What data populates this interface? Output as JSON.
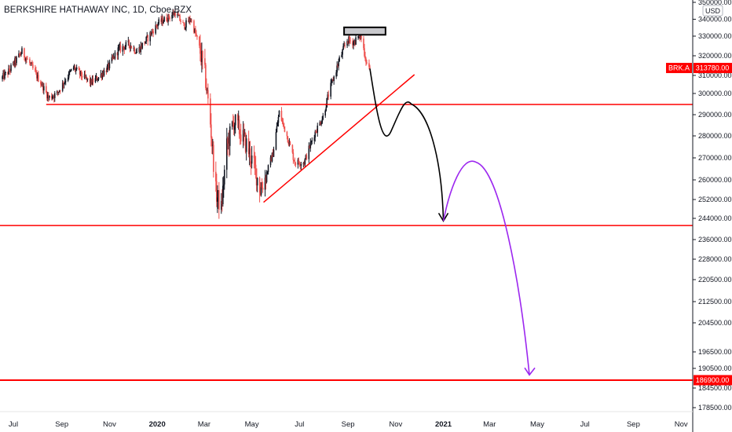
{
  "header": {
    "title": "BERKSHIRE HATHAWAY INC, 1D, Cboe BZX"
  },
  "price_axis": {
    "currency": "USD"
  },
  "colors": {
    "up": "#131722",
    "down": "#ef5350",
    "level": "#ff0000",
    "path_down": "#000000",
    "path_purple": "#9c27ef",
    "zone_fill": "#c8c8cc"
  },
  "labels": {
    "ticker": "BRK.A",
    "last_price": "313780.00",
    "target": "186900.00"
  },
  "chart_data": {
    "type": "candlestick",
    "title": "BERKSHIRE HATHAWAY INC, 1D, Cboe BZX",
    "ylim": [
      176000,
      351000
    ],
    "y_ticks": [
      "350000.00",
      "340000.00",
      "330000.00",
      "320000.00",
      "310000.00",
      "300000.00",
      "290000.00",
      "280000.00",
      "270000.00",
      "260000.00",
      "252000.00",
      "244000.00",
      "236000.00",
      "228000.00",
      "220500.00",
      "212500.00",
      "204500.00",
      "196500.00",
      "190500.00",
      "184500.00",
      "178500.00"
    ],
    "x_ticks": [
      "Jul",
      "Sep",
      "Nov",
      "2020",
      "Mar",
      "May",
      "Jul",
      "Sep",
      "Nov",
      "2021",
      "Mar",
      "May",
      "Jul",
      "Sep",
      "Nov"
    ],
    "x_tick_dates": [
      "2019-07-01",
      "2019-09-01",
      "2019-11-01",
      "2020-01-01",
      "2020-03-01",
      "2020-05-01",
      "2020-07-01",
      "2020-09-01",
      "2020-11-01",
      "2021-01-01",
      "2021-03-01",
      "2021-05-01",
      "2021-07-01",
      "2021-09-01",
      "2021-11-01"
    ],
    "bold_ticks": [
      "2020",
      "2021"
    ],
    "price_anchors": [
      [
        "2019-06-15",
        308000
      ],
      [
        "2019-06-25",
        312000
      ],
      [
        "2019-07-05",
        318000
      ],
      [
        "2019-07-12",
        322000
      ],
      [
        "2019-07-22",
        316000
      ],
      [
        "2019-08-05",
        306000
      ],
      [
        "2019-08-15",
        298000
      ],
      [
        "2019-08-26",
        300000
      ],
      [
        "2019-09-06",
        308000
      ],
      [
        "2019-09-16",
        314000
      ],
      [
        "2019-09-26",
        310000
      ],
      [
        "2019-10-08",
        306000
      ],
      [
        "2019-10-18",
        309000
      ],
      [
        "2019-10-30",
        314000
      ],
      [
        "2019-11-12",
        323000
      ],
      [
        "2019-11-26",
        326000
      ],
      [
        "2019-12-06",
        322000
      ],
      [
        "2019-12-18",
        328000
      ],
      [
        "2020-01-03",
        338000
      ],
      [
        "2020-01-15",
        341000
      ],
      [
        "2020-01-24",
        344000
      ],
      [
        "2020-02-04",
        336000
      ],
      [
        "2020-02-13",
        340000
      ],
      [
        "2020-02-24",
        324000
      ],
      [
        "2020-03-02",
        310000
      ],
      [
        "2020-03-09",
        286000
      ],
      [
        "2020-03-16",
        255000
      ],
      [
        "2020-03-23",
        248000
      ],
      [
        "2020-03-30",
        275000
      ],
      [
        "2020-04-08",
        287000
      ],
      [
        "2020-04-16",
        282000
      ],
      [
        "2020-04-24",
        276000
      ],
      [
        "2020-05-04",
        266000
      ],
      [
        "2020-05-12",
        256000
      ],
      [
        "2020-05-18",
        261000
      ],
      [
        "2020-05-28",
        272000
      ],
      [
        "2020-06-05",
        291000
      ],
      [
        "2020-06-15",
        280000
      ],
      [
        "2020-06-25",
        268000
      ],
      [
        "2020-07-07",
        268000
      ],
      [
        "2020-07-20",
        281000
      ],
      [
        "2020-07-31",
        289000
      ],
      [
        "2020-08-10",
        304000
      ],
      [
        "2020-08-21",
        318000
      ],
      [
        "2020-08-31",
        328000
      ],
      [
        "2020-09-09",
        327000
      ],
      [
        "2020-09-17",
        331000
      ],
      [
        "2020-09-25",
        316000
      ],
      [
        "2020-09-29",
        313780
      ]
    ],
    "candle_start": "2019-06-15",
    "candle_end": "2020-09-29",
    "last_price": 313780,
    "target_price": 186900,
    "annotations": {
      "resistance_zone": {
        "x": [
          "2020-08-27",
          "2020-10-19"
        ],
        "y": [
          330800,
          335200
        ]
      },
      "support_line_upper": 294800,
      "support_line_lower": 241300,
      "target_line": 186900,
      "upper_line_start": "2019-08-12",
      "lower_line_start": "2019-06-01",
      "target_line_start": "2019-06-01",
      "trendline": {
        "from": [
          "2020-05-16",
          250800
        ],
        "to": [
          "2020-11-25",
          310400
        ]
      },
      "black_path": [
        [
          "2020-09-29",
          313500
        ],
        [
          "2020-10-27",
          283000
        ],
        [
          "2020-11-21",
          295000
        ],
        [
          "2021-01-01",
          243000
        ]
      ],
      "purple_path": [
        [
          "2021-01-01",
          243000
        ],
        [
          "2021-02-12",
          268000
        ],
        [
          "2021-04-21",
          188500
        ]
      ]
    }
  }
}
